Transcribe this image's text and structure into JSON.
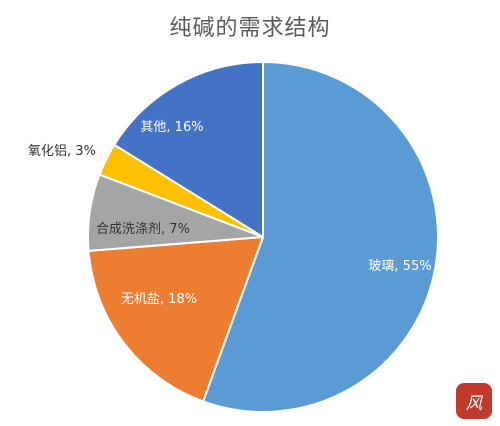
{
  "chart_data": {
    "type": "pie",
    "title": "纯碱的需求结构",
    "slices": [
      {
        "label": "玻璃, 55%",
        "value": 55,
        "color": "#5b9bd5"
      },
      {
        "label": "无机盐, 18%",
        "value": 18,
        "color": "#ed7d31"
      },
      {
        "label": "合成洗涤剂, 7%",
        "value": 7,
        "color": "#a5a5a5"
      },
      {
        "label": "氧化铝, 3%",
        "value": 3,
        "color": "#ffc000"
      },
      {
        "label": "其他, 16%",
        "value": 16,
        "color": "#4472c4"
      }
    ]
  },
  "seal": {
    "text": "风"
  }
}
